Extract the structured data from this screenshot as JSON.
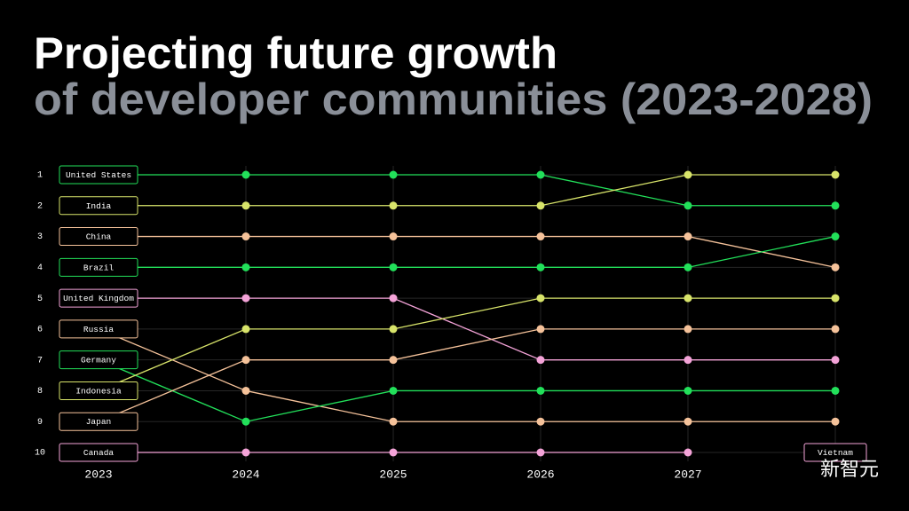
{
  "chart_data": {
    "type": "bump",
    "title": "Projecting future growth",
    "subtitle": "of developer communities (2023-2028)",
    "categories": [
      "2023",
      "2024",
      "2025",
      "2026",
      "2027",
      null
    ],
    "ylim": [
      10,
      1
    ],
    "yticks": [
      1,
      2,
      3,
      4,
      5,
      6,
      7,
      8,
      9,
      10
    ],
    "grid": true,
    "series": [
      {
        "name": "United States",
        "color": "#22e05a",
        "values": [
          1,
          1,
          1,
          1,
          2,
          2
        ]
      },
      {
        "name": "India",
        "color": "#d8e46a",
        "values": [
          2,
          2,
          2,
          2,
          1,
          1
        ]
      },
      {
        "name": "China",
        "color": "#f5c29a",
        "values": [
          3,
          3,
          3,
          3,
          3,
          4
        ]
      },
      {
        "name": "Brazil",
        "color": "#22e05a",
        "values": [
          4,
          4,
          4,
          4,
          4,
          3
        ]
      },
      {
        "name": "United Kingdom",
        "color": "#f4a3d8",
        "values": [
          5,
          5,
          5,
          7,
          7,
          7
        ]
      },
      {
        "name": "Russia",
        "color": "#f5c29a",
        "values": [
          6,
          8,
          9,
          9,
          9,
          9
        ]
      },
      {
        "name": "Germany",
        "color": "#22e05a",
        "values": [
          7,
          9,
          8,
          8,
          8,
          8
        ]
      },
      {
        "name": "Indonesia",
        "color": "#d8e46a",
        "values": [
          8,
          6,
          6,
          5,
          5,
          5
        ]
      },
      {
        "name": "Japan",
        "color": "#f5c29a",
        "values": [
          9,
          7,
          7,
          6,
          6,
          6
        ]
      },
      {
        "name": "Canada",
        "color": "#f4a3d8",
        "values": [
          10,
          10,
          10,
          10,
          10,
          null
        ]
      },
      {
        "name": "Vietnam",
        "color": "#f4a3d8",
        "values": [
          null,
          null,
          null,
          null,
          null,
          10
        ]
      }
    ],
    "watermark": "新智元"
  }
}
